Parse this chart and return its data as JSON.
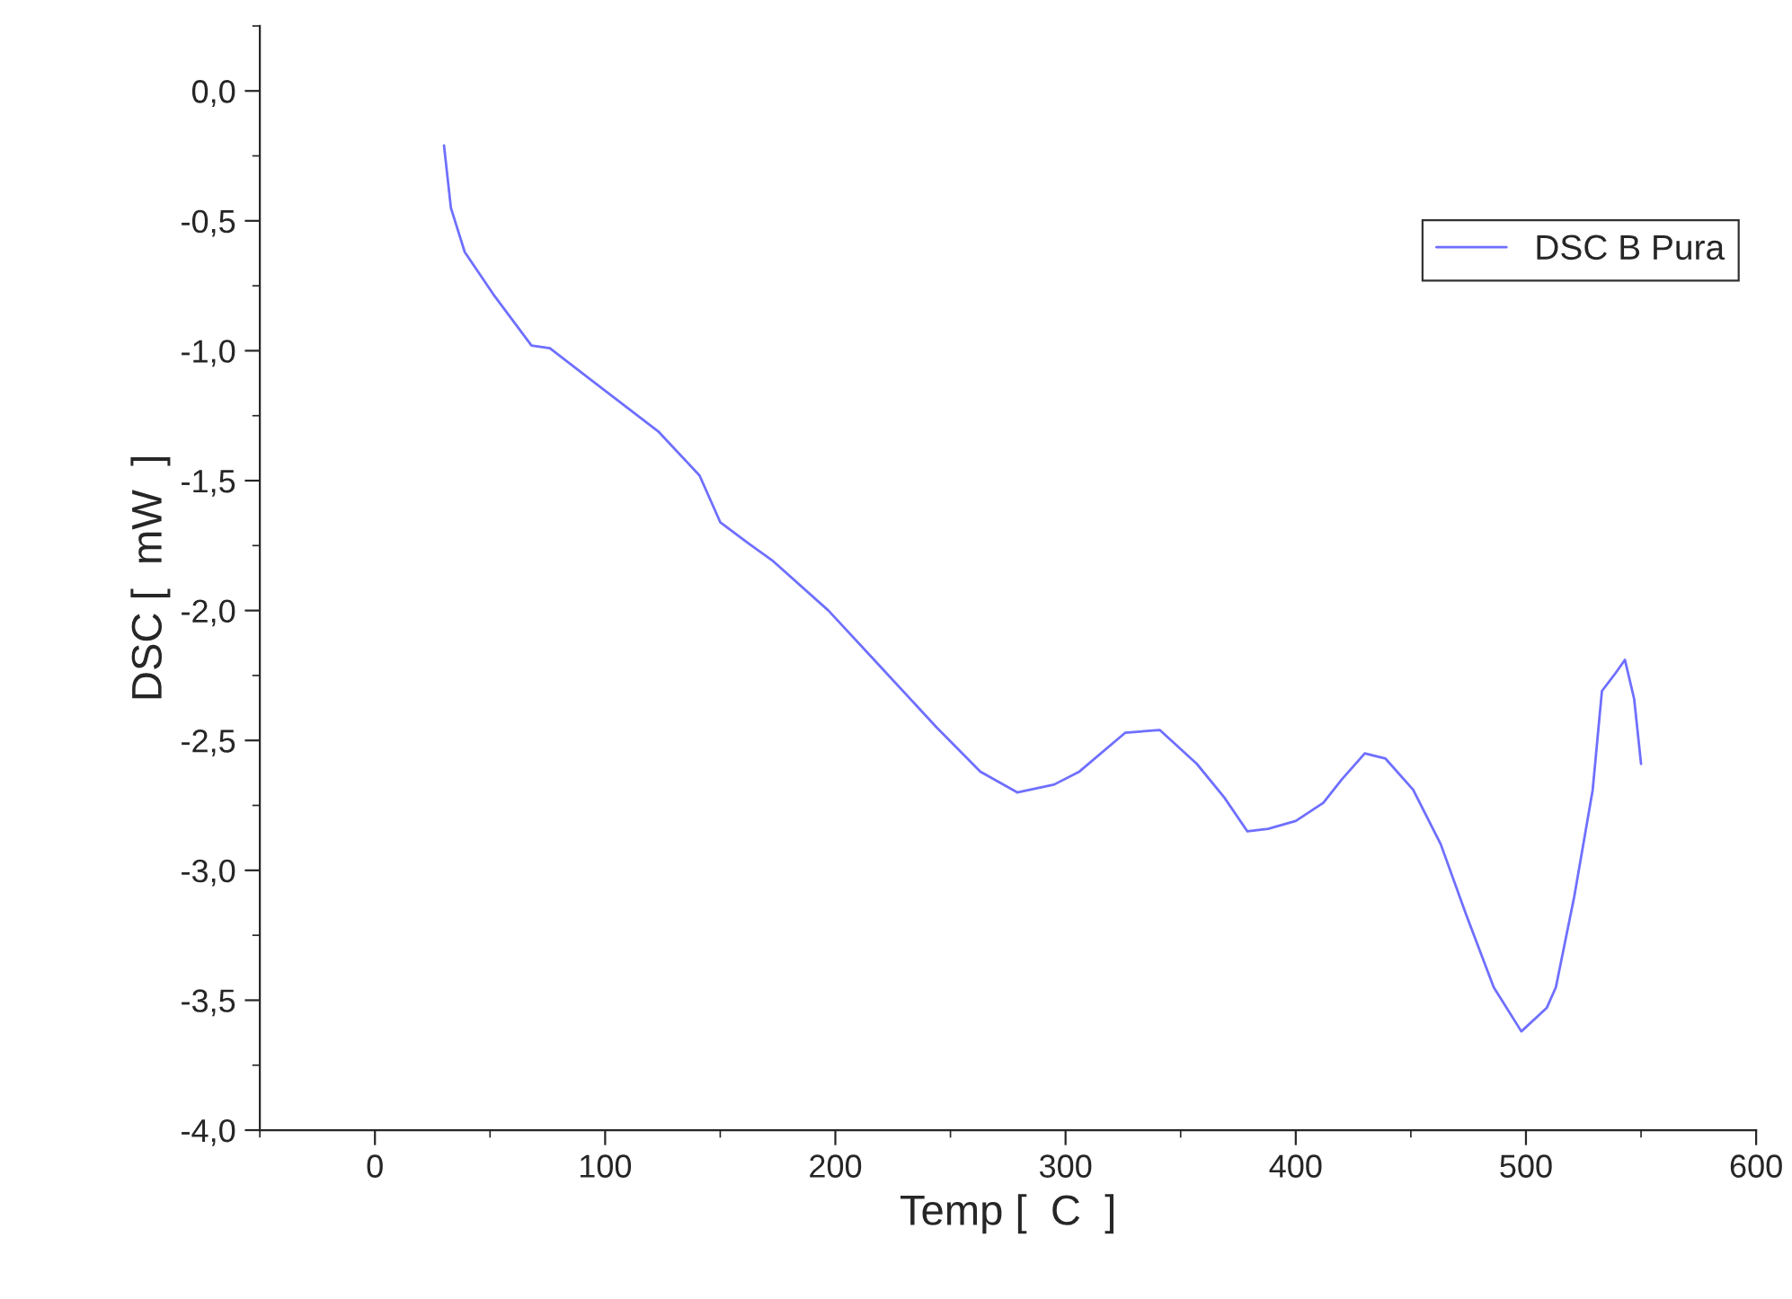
{
  "chart_data": {
    "type": "line",
    "xlabel": "Temp [  C  ]",
    "ylabel": "DSC [  mW  ]",
    "xlim": [
      -50,
      600
    ],
    "ylim": [
      -4.0,
      0.25
    ],
    "xticks": [
      {
        "value": -50,
        "label": null
      },
      0,
      {
        "value": 50,
        "label": null
      },
      100,
      {
        "value": 150,
        "label": null
      },
      200,
      {
        "value": 250,
        "label": null
      },
      300,
      {
        "value": 350,
        "label": null
      },
      400,
      {
        "value": 450,
        "label": null
      },
      500,
      {
        "value": 550,
        "label": null
      },
      600
    ],
    "yticks": [
      {
        "value": -4.0,
        "label": "-4,0"
      },
      {
        "value": -3.75,
        "label": null
      },
      {
        "value": -3.5,
        "label": "-3,5"
      },
      {
        "value": -3.25,
        "label": null
      },
      {
        "value": -3.0,
        "label": "-3,0"
      },
      {
        "value": -2.75,
        "label": null
      },
      {
        "value": -2.5,
        "label": "-2,5"
      },
      {
        "value": -2.25,
        "label": null
      },
      {
        "value": -2.0,
        "label": "-2,0"
      },
      {
        "value": -1.75,
        "label": null
      },
      {
        "value": -1.5,
        "label": "-1,5"
      },
      {
        "value": -1.25,
        "label": null
      },
      {
        "value": -1.0,
        "label": "-1,0"
      },
      {
        "value": -0.75,
        "label": null
      },
      {
        "value": -0.5,
        "label": "-0,5"
      },
      {
        "value": -0.25,
        "label": null
      },
      {
        "value": 0.0,
        "label": "0,0"
      },
      {
        "value": 0.25,
        "label": null
      }
    ],
    "grid": false,
    "legend": "top right",
    "marker": "none",
    "line_style": "solid",
    "series": [
      {
        "name": "DSC B Pura",
        "color": "#6f6fff",
        "x": [
          30,
          33,
          39,
          52,
          68,
          76,
          95,
          123,
          141,
          150,
          162,
          173,
          197,
          220,
          244,
          263,
          279,
          295,
          306,
          326,
          341,
          357,
          369,
          379,
          388,
          400,
          412,
          420,
          430,
          439,
          451,
          463,
          474,
          486,
          498,
          509,
          513,
          521,
          529,
          533,
          539,
          543,
          547,
          550
        ],
        "values": [
          -0.21,
          -0.45,
          -0.62,
          -0.79,
          -0.98,
          -0.99,
          -1.12,
          -1.31,
          -1.48,
          -1.66,
          -1.74,
          -1.81,
          -2.0,
          -2.22,
          -2.45,
          -2.62,
          -2.7,
          -2.67,
          -2.62,
          -2.47,
          -2.46,
          -2.59,
          -2.72,
          -2.85,
          -2.84,
          -2.81,
          -2.74,
          -2.65,
          -2.55,
          -2.57,
          -2.69,
          -2.9,
          -3.17,
          -3.45,
          -3.62,
          -3.53,
          -3.45,
          -3.1,
          -2.69,
          -2.31,
          -2.24,
          -2.19,
          -2.34,
          -2.59
        ]
      }
    ]
  }
}
